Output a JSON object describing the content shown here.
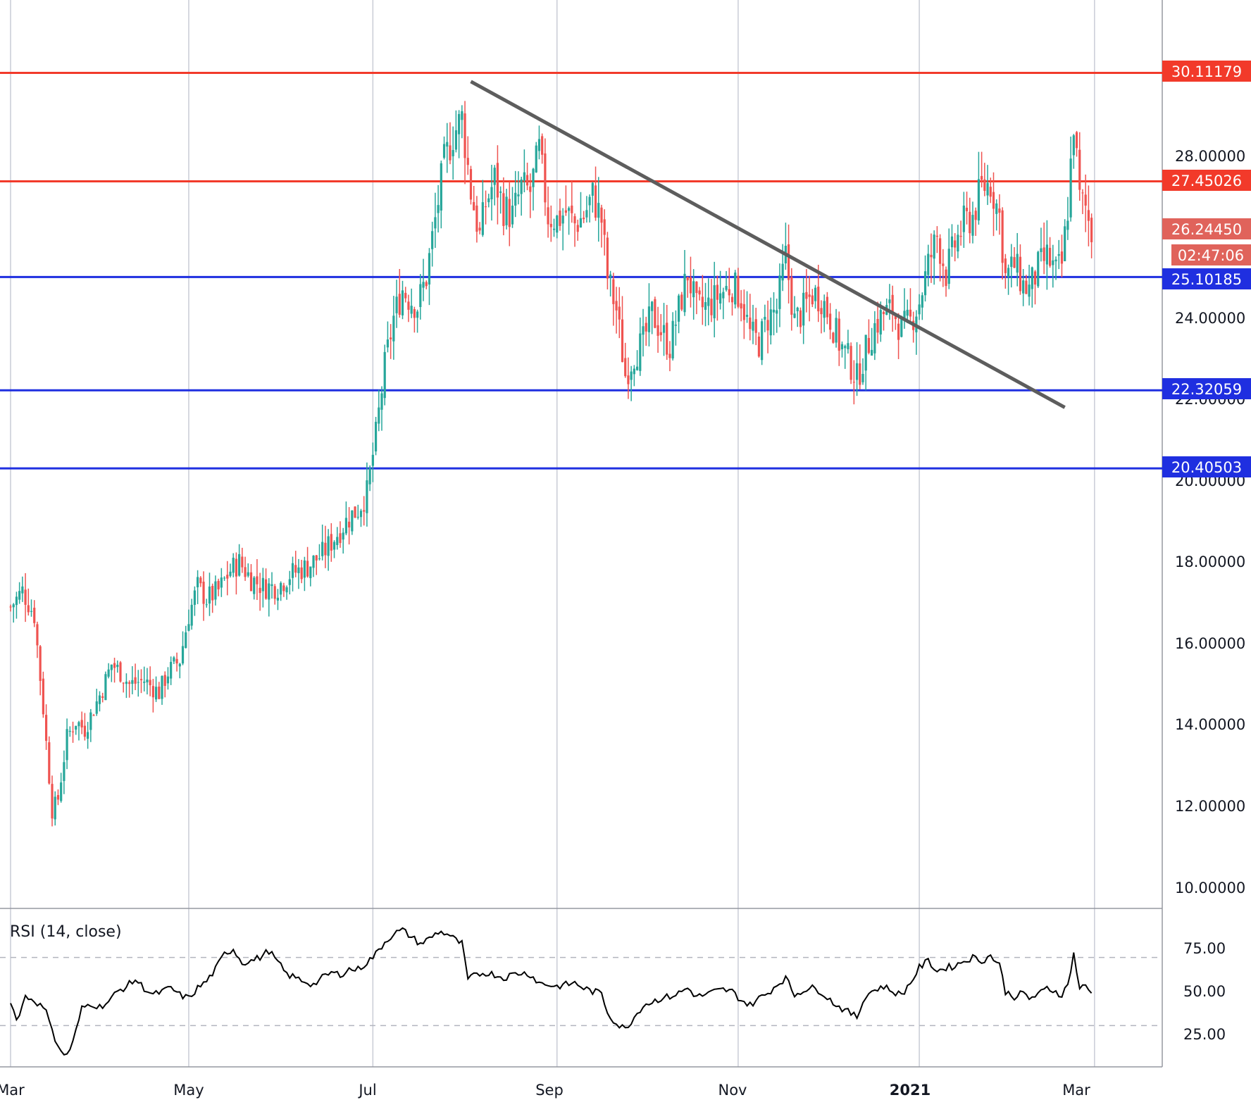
{
  "chart_data": [
    {
      "type": "candlestick",
      "ylim": [
        9.5,
        31.8
      ],
      "y_ticks": [
        "10.00000",
        "12.00000",
        "14.00000",
        "16.00000",
        "18.00000",
        "20.00000",
        "22.00000",
        "24.00000",
        "28.00000"
      ],
      "x_ticks": [
        "Mar",
        "May",
        "Jul",
        "Sep",
        "Nov",
        "2021",
        "Mar"
      ],
      "colors": {
        "up": "#26a69a",
        "down": "#ef5350",
        "grid": "#c9ccd6",
        "text": "#131722"
      },
      "horizontal_levels": [
        {
          "value": 30.11179,
          "label": "30.11179",
          "color": "#f23a2a"
        },
        {
          "value": 27.45026,
          "label": "27.45026",
          "color": "#f23a2a"
        },
        {
          "value": 25.10185,
          "label": "25.10185",
          "color": "#1f2fe0"
        },
        {
          "value": 22.32059,
          "label": "22.32059",
          "color": "#1f2fe0"
        },
        {
          "value": 20.40503,
          "label": "20.40503",
          "color": "#1f2fe0"
        }
      ],
      "last_price": {
        "value": 26.2445,
        "label": "26.24450",
        "countdown": "02:47:06",
        "color": "#e0635b"
      },
      "trendline": {
        "color": "#5d5d5d",
        "points": [
          [
            155,
            29.9
          ],
          [
            355,
            21.9
          ]
        ]
      },
      "weekly_path": [
        [
          0,
          17.0
        ],
        [
          4,
          17.4
        ],
        [
          8,
          16.8
        ],
        [
          11,
          14.5
        ],
        [
          14,
          12.0
        ],
        [
          16,
          12.3
        ],
        [
          19,
          13.8
        ],
        [
          22,
          14.2
        ],
        [
          25,
          14.0
        ],
        [
          28,
          14.5
        ],
        [
          31,
          15.0
        ],
        [
          34,
          15.6
        ],
        [
          37,
          15.4
        ],
        [
          40,
          15.1
        ],
        [
          45,
          15.2
        ],
        [
          50,
          14.9
        ],
        [
          53,
          15.4
        ],
        [
          57,
          15.7
        ],
        [
          60,
          16.8
        ],
        [
          63,
          17.5
        ],
        [
          66,
          17.2
        ],
        [
          70,
          17.4
        ],
        [
          74,
          17.9
        ],
        [
          77,
          18.1
        ],
        [
          81,
          17.7
        ],
        [
          85,
          17.5
        ],
        [
          90,
          17.5
        ],
        [
          94,
          17.8
        ],
        [
          100,
          18.0
        ],
        [
          105,
          18.3
        ],
        [
          110,
          18.8
        ],
        [
          114,
          19.2
        ],
        [
          117,
          19.4
        ],
        [
          120,
          19.8
        ],
        [
          123,
          21.2
        ],
        [
          126,
          22.9
        ],
        [
          129,
          24.1
        ],
        [
          132,
          24.8
        ],
        [
          134,
          24.6
        ],
        [
          137,
          24.4
        ],
        [
          140,
          25.1
        ],
        [
          143,
          26.5
        ],
        [
          146,
          27.9
        ],
        [
          149,
          28.6
        ],
        [
          152,
          29.0
        ],
        [
          155,
          27.2
        ],
        [
          158,
          26.1
        ],
        [
          160,
          26.9
        ],
        [
          163,
          27.5
        ],
        [
          166,
          26.8
        ],
        [
          169,
          26.6
        ],
        [
          172,
          27.3
        ],
        [
          175,
          27.2
        ],
        [
          178,
          28.2
        ],
        [
          181,
          26.6
        ],
        [
          184,
          26.5
        ],
        [
          187,
          26.7
        ],
        [
          190,
          26.4
        ],
        [
          193,
          26.6
        ],
        [
          196,
          27.1
        ],
        [
          199,
          26.5
        ],
        [
          201,
          25.1
        ],
        [
          204,
          24.3
        ],
        [
          207,
          22.7
        ],
        [
          210,
          23.2
        ],
        [
          213,
          23.5
        ],
        [
          216,
          24.2
        ],
        [
          219,
          23.8
        ],
        [
          222,
          23.4
        ],
        [
          225,
          24.3
        ],
        [
          228,
          25.2
        ],
        [
          231,
          24.3
        ],
        [
          235,
          24.4
        ],
        [
          239,
          24.7
        ],
        [
          243,
          24.9
        ],
        [
          246,
          24.6
        ],
        [
          249,
          23.7
        ],
        [
          252,
          23.5
        ],
        [
          255,
          24.1
        ],
        [
          258,
          24.3
        ],
        [
          261,
          25.6
        ],
        [
          264,
          24.0
        ],
        [
          267,
          24.3
        ],
        [
          270,
          24.7
        ],
        [
          273,
          24.6
        ],
        [
          276,
          24.1
        ],
        [
          279,
          23.5
        ],
        [
          282,
          23.1
        ],
        [
          285,
          22.6
        ],
        [
          288,
          23.3
        ],
        [
          291,
          23.9
        ],
        [
          294,
          24.2
        ],
        [
          297,
          24.3
        ],
        [
          300,
          23.8
        ],
        [
          303,
          24.0
        ],
        [
          306,
          24.5
        ],
        [
          309,
          25.4
        ],
        [
          312,
          26.1
        ],
        [
          315,
          25.2
        ],
        [
          318,
          25.9
        ],
        [
          321,
          26.4
        ],
        [
          324,
          26.6
        ],
        [
          327,
          27.3
        ],
        [
          330,
          27.4
        ],
        [
          333,
          26.6
        ],
        [
          335,
          25.1
        ],
        [
          338,
          25.4
        ],
        [
          341,
          24.9
        ],
        [
          343,
          24.8
        ],
        [
          346,
          25.3
        ],
        [
          349,
          25.6
        ],
        [
          352,
          25.2
        ],
        [
          354,
          25.4
        ],
        [
          356,
          26.8
        ],
        [
          358,
          28.9
        ],
        [
          360,
          27.0
        ],
        [
          362,
          26.8
        ],
        [
          364,
          26.2
        ]
      ]
    },
    {
      "type": "line",
      "title": "RSI (14, close)",
      "ylim": [
        10,
        92
      ],
      "y_ticks": [
        "75.00",
        "50.00",
        "25.00"
      ],
      "bands": [
        70,
        30
      ],
      "color": "#000000",
      "keypoints": [
        [
          0,
          45
        ],
        [
          2,
          33
        ],
        [
          5,
          47
        ],
        [
          8,
          45
        ],
        [
          11,
          40
        ],
        [
          13,
          35
        ],
        [
          15,
          22
        ],
        [
          17,
          14
        ],
        [
          19,
          13
        ],
        [
          21,
          20
        ],
        [
          24,
          40
        ],
        [
          27,
          43
        ],
        [
          30,
          41
        ],
        [
          33,
          44
        ],
        [
          36,
          50
        ],
        [
          39,
          53
        ],
        [
          42,
          57
        ],
        [
          45,
          52
        ],
        [
          48,
          48
        ],
        [
          51,
          50
        ],
        [
          54,
          52
        ],
        [
          57,
          48
        ],
        [
          60,
          46
        ],
        [
          63,
          52
        ],
        [
          66,
          56
        ],
        [
          69,
          63
        ],
        [
          72,
          72
        ],
        [
          75,
          75
        ],
        [
          78,
          67
        ],
        [
          81,
          68
        ],
        [
          84,
          70
        ],
        [
          87,
          74
        ],
        [
          90,
          67
        ],
        [
          93,
          60
        ],
        [
          96,
          58
        ],
        [
          99,
          56
        ],
        [
          102,
          54
        ],
        [
          105,
          58
        ],
        [
          108,
          61
        ],
        [
          111,
          60
        ],
        [
          114,
          63
        ],
        [
          117,
          63
        ],
        [
          120,
          67
        ],
        [
          123,
          72
        ],
        [
          126,
          79
        ],
        [
          129,
          84
        ],
        [
          132,
          86
        ],
        [
          135,
          82
        ],
        [
          138,
          78
        ],
        [
          141,
          81
        ],
        [
          144,
          85
        ],
        [
          147,
          84
        ],
        [
          150,
          80
        ],
        [
          152,
          78
        ],
        [
          154,
          57
        ],
        [
          157,
          60
        ],
        [
          160,
          61
        ],
        [
          163,
          60
        ],
        [
          166,
          58
        ],
        [
          169,
          60
        ],
        [
          172,
          61
        ],
        [
          175,
          60
        ],
        [
          178,
          55
        ],
        [
          181,
          54
        ],
        [
          184,
          53
        ],
        [
          187,
          54
        ],
        [
          190,
          55
        ],
        [
          193,
          52
        ],
        [
          196,
          50
        ],
        [
          199,
          49
        ],
        [
          201,
          38
        ],
        [
          204,
          31
        ],
        [
          207,
          28
        ],
        [
          210,
          35
        ],
        [
          213,
          42
        ],
        [
          216,
          44
        ],
        [
          219,
          46
        ],
        [
          222,
          47
        ],
        [
          225,
          49
        ],
        [
          228,
          52
        ],
        [
          231,
          47
        ],
        [
          234,
          48
        ],
        [
          237,
          50
        ],
        [
          240,
          51
        ],
        [
          243,
          50
        ],
        [
          246,
          45
        ],
        [
          249,
          42
        ],
        [
          252,
          46
        ],
        [
          255,
          49
        ],
        [
          258,
          54
        ],
        [
          261,
          58
        ],
        [
          264,
          48
        ],
        [
          267,
          51
        ],
        [
          270,
          52
        ],
        [
          273,
          50
        ],
        [
          276,
          45
        ],
        [
          279,
          41
        ],
        [
          282,
          38
        ],
        [
          285,
          35
        ],
        [
          288,
          48
        ],
        [
          291,
          51
        ],
        [
          294,
          53
        ],
        [
          297,
          50
        ],
        [
          300,
          48
        ],
        [
          303,
          55
        ],
        [
          306,
          64
        ],
        [
          309,
          68
        ],
        [
          312,
          62
        ],
        [
          315,
          64
        ],
        [
          318,
          65
        ],
        [
          321,
          68
        ],
        [
          324,
          70
        ],
        [
          327,
          68
        ],
        [
          330,
          71
        ],
        [
          333,
          66
        ],
        [
          335,
          50
        ],
        [
          338,
          47
        ],
        [
          341,
          49
        ],
        [
          343,
          46
        ],
        [
          346,
          48
        ],
        [
          349,
          52
        ],
        [
          352,
          50
        ],
        [
          354,
          48
        ],
        [
          356,
          54
        ],
        [
          358,
          72
        ],
        [
          360,
          52
        ],
        [
          362,
          53
        ],
        [
          364,
          49
        ]
      ]
    }
  ]
}
